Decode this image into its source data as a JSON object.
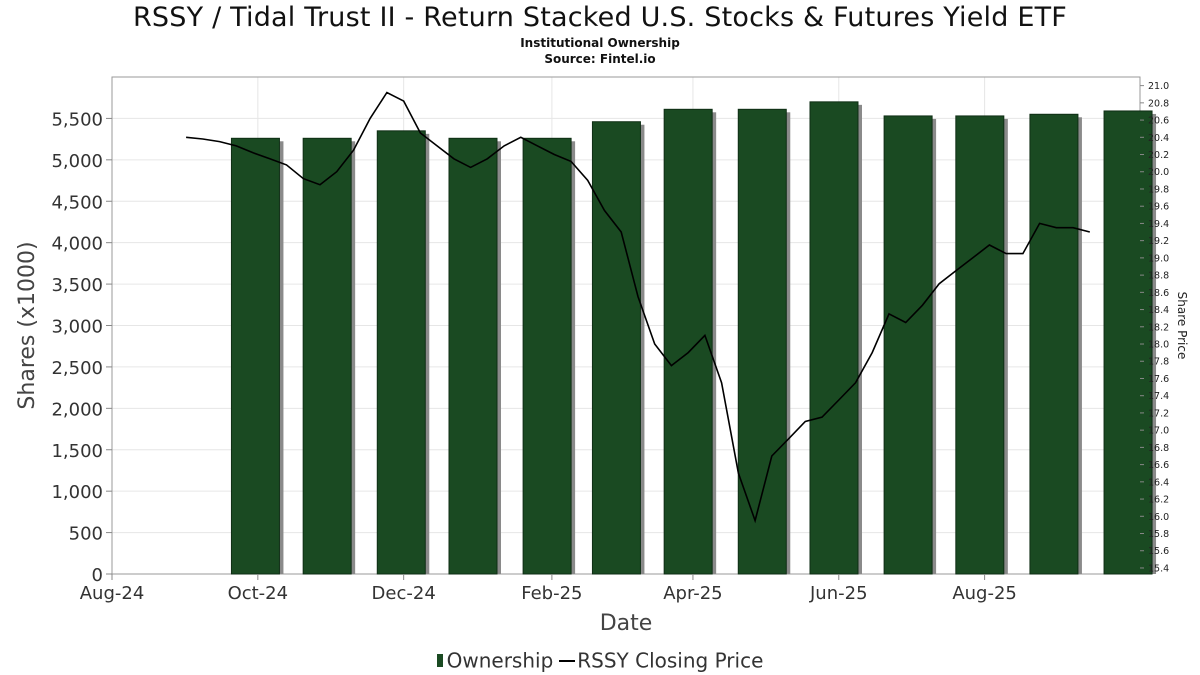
{
  "title": "RSSY / Tidal Trust II - Return Stacked U.S. Stocks & Futures Yield ETF",
  "subtitle": "Institutional Ownership",
  "source": "Source: Fintel.io",
  "colors": {
    "bar": "#1a4a22",
    "bar_shadow": "#8a8a8a",
    "line": "#000000",
    "grid": "#e6e6e6"
  },
  "chart_data": {
    "type": "bar",
    "xlabel": "Date",
    "ylabel": "Shares (x1000)",
    "y2label": "Share Price",
    "x_ticks": [
      "Aug-24",
      "Oct-24",
      "Dec-24",
      "Feb-25",
      "Apr-25",
      "Jun-25",
      "Aug-25"
    ],
    "y_ticks": [
      "0",
      "500",
      "1,000",
      "1,500",
      "2,000",
      "2,500",
      "3,000",
      "3,500",
      "4,000",
      "4,500",
      "5,000",
      "5,500"
    ],
    "y2_ticks": [
      "15.4",
      "15.6",
      "15.8",
      "16.0",
      "16.2",
      "16.4",
      "16.6",
      "16.8",
      "17.0",
      "17.2",
      "17.4",
      "17.6",
      "17.8",
      "18.0",
      "18.2",
      "18.4",
      "18.6",
      "18.8",
      "19.0",
      "19.2",
      "19.4",
      "19.6",
      "19.8",
      "20.0",
      "20.2",
      "20.4",
      "20.6",
      "20.8",
      "21.0"
    ],
    "ylim": [
      0,
      6000
    ],
    "y2lim": [
      15.33,
      21.1
    ],
    "grid": true,
    "legend_position": "bottom-center",
    "series": [
      {
        "name": "Ownership",
        "type": "bar",
        "x": [
          "2024-09-30",
          "2024-10-30",
          "2024-11-30",
          "2024-12-30",
          "2025-01-30",
          "2025-02-28",
          "2025-03-30",
          "2025-04-30",
          "2025-05-30",
          "2025-06-30",
          "2025-07-30",
          "2025-08-30",
          "2025-09-30"
        ],
        "values": [
          5260,
          5260,
          5350,
          5260,
          5260,
          5460,
          5610,
          5610,
          5700,
          5530,
          5530,
          5550,
          5590
        ]
      },
      {
        "name": "RSSY Closing Price",
        "type": "line",
        "x": [
          "2024-09-01",
          "2024-09-08",
          "2024-09-15",
          "2024-09-22",
          "2024-09-29",
          "2024-10-06",
          "2024-10-13",
          "2024-10-20",
          "2024-10-27",
          "2024-11-03",
          "2024-11-10",
          "2024-11-17",
          "2024-11-24",
          "2024-12-01",
          "2024-12-08",
          "2024-12-15",
          "2024-12-22",
          "2024-12-29",
          "2025-01-05",
          "2025-01-12",
          "2025-01-19",
          "2025-01-26",
          "2025-02-02",
          "2025-02-09",
          "2025-02-16",
          "2025-02-23",
          "2025-03-02",
          "2025-03-09",
          "2025-03-16",
          "2025-03-23",
          "2025-03-30",
          "2025-04-06",
          "2025-04-13",
          "2025-04-20",
          "2025-04-27",
          "2025-05-04",
          "2025-05-11",
          "2025-05-18",
          "2025-05-25",
          "2025-06-01",
          "2025-06-08",
          "2025-06-15",
          "2025-06-22",
          "2025-06-29",
          "2025-07-06",
          "2025-07-13",
          "2025-07-20",
          "2025-07-27",
          "2025-08-03",
          "2025-08-10",
          "2025-08-17",
          "2025-08-24",
          "2025-08-31",
          "2025-09-07",
          "2025-09-14"
        ],
        "values": [
          20.4,
          20.38,
          20.35,
          20.3,
          20.22,
          20.15,
          20.08,
          19.92,
          19.85,
          20.0,
          20.25,
          20.62,
          20.92,
          20.82,
          20.45,
          20.3,
          20.15,
          20.05,
          20.15,
          20.3,
          20.4,
          20.3,
          20.2,
          20.12,
          19.9,
          19.55,
          19.3,
          18.55,
          18.0,
          17.75,
          17.9,
          18.1,
          17.55,
          16.5,
          15.95,
          16.7,
          16.9,
          17.1,
          17.15,
          17.35,
          17.55,
          17.9,
          18.35,
          18.25,
          18.45,
          18.7,
          18.85,
          19.0,
          19.15,
          19.05,
          19.05,
          19.4,
          19.35,
          19.35,
          19.3
        ]
      }
    ]
  }
}
